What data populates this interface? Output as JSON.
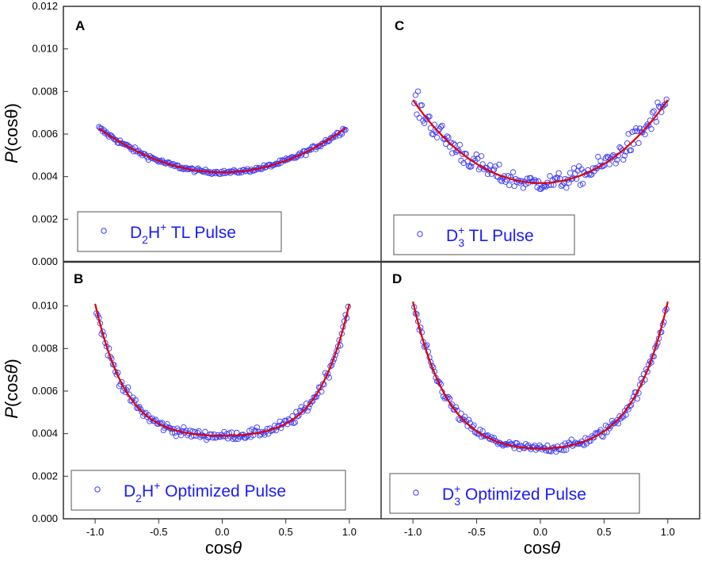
{
  "chart_data": [
    {
      "type": "scatter",
      "panel": "A",
      "xlim": [
        -1.25,
        1.25
      ],
      "ylim": [
        0.0,
        0.012
      ],
      "legend": {
        "base": "D",
        "sub": "2",
        "mid": "H",
        "sup": "+",
        "rest": " TL Pulse",
        "placement": "bottom-left"
      },
      "series": [
        {
          "name": "data",
          "marker": "open-circle",
          "color": "#3a3aff",
          "fit": {
            "c0": 0.0042,
            "c2": 0.0022,
            "c4": 0.0,
            "c6": 0.0
          },
          "noise": 8e-05
        },
        {
          "name": "fit",
          "kind": "line",
          "color": "#e00000"
        }
      ],
      "x_range": [
        -0.97,
        0.97
      ]
    },
    {
      "type": "scatter",
      "panel": "B",
      "xlim": [
        -1.25,
        1.25
      ],
      "ylim": [
        0.0,
        0.012
      ],
      "legend": {
        "base": "D",
        "sub": "2",
        "mid": "H",
        "sup": "+",
        "rest": " Optimized Pulse",
        "placement": "bottom-left"
      },
      "series": [
        {
          "name": "data",
          "marker": "open-circle",
          "color": "#3a3aff",
          "fit": {
            "c0": 0.0039,
            "c2": 0.0015,
            "c4": 0.0025,
            "c6": 0.0022
          },
          "noise": 0.00018
        },
        {
          "name": "fit",
          "kind": "line",
          "color": "#e00000"
        }
      ],
      "x_range": [
        -0.99,
        0.99
      ]
    },
    {
      "type": "scatter",
      "panel": "C",
      "xlim": [
        -1.25,
        1.25
      ],
      "ylim": [
        0.0,
        0.012
      ],
      "legend": {
        "base": "D",
        "sub": "3",
        "sup": "+",
        "rest": " TL Pulse",
        "placement": "bottom-left"
      },
      "series": [
        {
          "name": "data",
          "marker": "open-circle",
          "color": "#3a3aff",
          "fit": {
            "c0": 0.0037,
            "c2": 0.0035,
            "c4": 0.0004,
            "c6": 0.0
          },
          "noise": 0.00035
        },
        {
          "name": "fit",
          "kind": "line",
          "color": "#e00000"
        }
      ],
      "x_range": [
        -0.99,
        0.99
      ]
    },
    {
      "type": "scatter",
      "panel": "D",
      "xlim": [
        -1.25,
        1.25
      ],
      "ylim": [
        0.0,
        0.012
      ],
      "legend": {
        "base": "D",
        "sub": "3",
        "sup": "+",
        "rest": " Optimized Pulse",
        "placement": "bottom-left"
      },
      "series": [
        {
          "name": "data",
          "marker": "open-circle",
          "color": "#3a3aff",
          "fit": {
            "c0": 0.0033,
            "c2": 0.0025,
            "c4": 0.0025,
            "c6": 0.0019
          },
          "noise": 0.00018
        },
        {
          "name": "fit",
          "kind": "line",
          "color": "#e00000"
        }
      ],
      "x_range": [
        -0.99,
        0.99
      ]
    }
  ],
  "axes": {
    "y_ticks": [
      "0.000",
      "0.002",
      "0.004",
      "0.006",
      "0.008",
      "0.010",
      "0.012"
    ],
    "y_ticks_lower": [
      "0.000",
      "0.002",
      "0.004",
      "0.006",
      "0.008",
      "0.010"
    ],
    "x_ticks": [
      "-1.0",
      "-0.5",
      "0.0",
      "0.5",
      "1.0"
    ],
    "ylabel_top": "P(cosθ)",
    "ylabel_bottom": "P(cosθ)",
    "xlabel": "cosθ"
  }
}
